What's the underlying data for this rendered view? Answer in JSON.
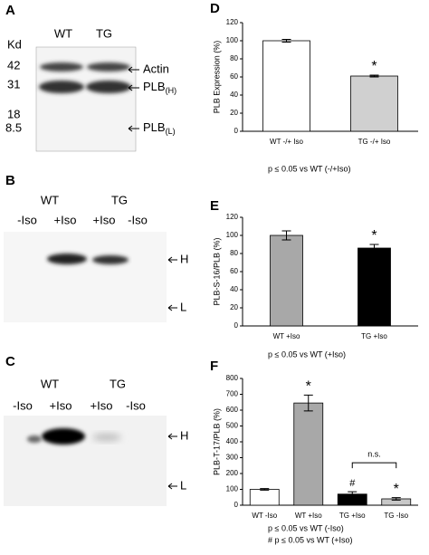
{
  "chart_data": [
    {
      "type": "bar",
      "panel": "D",
      "ylabel": "PLB Expression (%)",
      "categories": [
        "WT -/+ Iso",
        "TG -/+ Iso"
      ],
      "values": [
        100,
        61
      ],
      "errors": [
        1.5,
        1
      ],
      "colors": [
        "#ffffff",
        "#d0d0d0"
      ],
      "annotations": [
        null,
        "*"
      ],
      "ylim": [
        0,
        120
      ],
      "yticks": [
        0,
        20,
        40,
        60,
        80,
        100,
        120
      ],
      "notes": [
        "p ≤ 0.05 vs WT (-/+Iso)"
      ]
    },
    {
      "type": "bar",
      "panel": "E",
      "ylabel": "PLB-S-16/PLB (%)",
      "categories": [
        "WT +Iso",
        "TG +Iso"
      ],
      "values": [
        100,
        86
      ],
      "errors": [
        5,
        4
      ],
      "colors": [
        "#a8a8a8",
        "#000000"
      ],
      "annotations": [
        null,
        "*"
      ],
      "ylim": [
        0,
        120
      ],
      "yticks": [
        0,
        20,
        40,
        60,
        80,
        100,
        120
      ],
      "notes": [
        "p ≤ 0.05 vs WT (+Iso)"
      ]
    },
    {
      "type": "bar",
      "panel": "F",
      "ylabel": "PLB-T-17/PLB (%)",
      "categories": [
        "WT -Iso",
        "WT +Iso",
        "TG +Iso",
        "TG -Iso"
      ],
      "values": [
        100,
        645,
        70,
        40
      ],
      "errors": [
        5,
        50,
        15,
        8
      ],
      "colors": [
        "#ffffff",
        "#a8a8a8",
        "#000000",
        "#c8c8c8"
      ],
      "annotations": [
        null,
        "*",
        "#",
        "*"
      ],
      "bracket_label": "n.s.",
      "ylim": [
        0,
        800
      ],
      "yticks": [
        0,
        100,
        200,
        300,
        400,
        500,
        600,
        700,
        800
      ],
      "notes": [
        "p ≤ 0.05 vs WT (-Iso)",
        "# p ≤ 0.05 vs WT (+Iso)"
      ]
    }
  ],
  "blots": [
    {
      "panel": "A",
      "unit": "Kd",
      "sizes": [
        "42",
        "31",
        "18",
        "8.5"
      ],
      "groups": [
        "WT",
        "TG"
      ],
      "bands": [
        {
          "text": "Actin"
        },
        {
          "text": "PLB",
          "sub": "(H)"
        },
        {
          "text": "PLB",
          "sub": "(L)"
        }
      ]
    },
    {
      "panel": "B",
      "groups": [
        "WT",
        "TG"
      ],
      "lanes": [
        "-Iso",
        "+Iso",
        "+Iso",
        "-Iso"
      ],
      "bands": [
        "H",
        "L"
      ]
    },
    {
      "panel": "C",
      "groups": [
        "WT",
        "TG"
      ],
      "lanes": [
        "-Iso",
        "+Iso",
        "+Iso",
        "-Iso"
      ],
      "bands": [
        "H",
        "L"
      ]
    }
  ]
}
